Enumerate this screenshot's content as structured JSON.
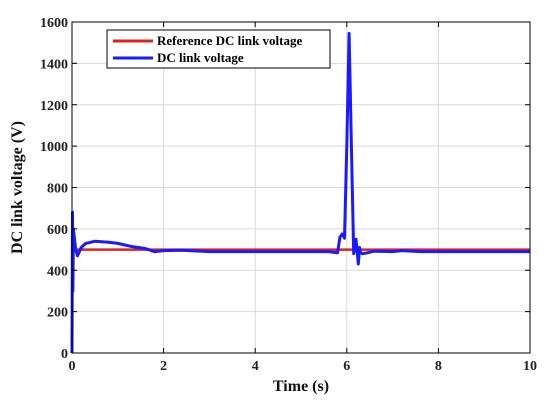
{
  "chart_data": {
    "type": "line",
    "title": "",
    "xlabel": "Time (s)",
    "ylabel": "DC link voltage (V)",
    "xlim": [
      0,
      10
    ],
    "ylim": [
      0,
      1600
    ],
    "xticks": [
      0,
      2,
      4,
      6,
      8,
      10
    ],
    "yticks": [
      0,
      200,
      400,
      600,
      800,
      1000,
      1200,
      1400,
      1600
    ],
    "xtick_labels": [
      "0",
      "2",
      "4",
      "6",
      "8",
      "10"
    ],
    "ytick_labels": [
      "0",
      "200",
      "400",
      "600",
      "800",
      "1000",
      "1200",
      "1400",
      "1600"
    ],
    "grid": true,
    "legend_position": "top-left",
    "series": [
      {
        "name": "Reference DC link voltage",
        "color": "#e02020",
        "x": [
          0,
          10
        ],
        "y": [
          500,
          500
        ]
      },
      {
        "name": "DC link voltage",
        "color": "#1a1aff",
        "x": [
          0,
          0.01,
          0.02,
          0.03,
          0.05,
          0.08,
          0.12,
          0.2,
          0.3,
          0.5,
          0.8,
          1.0,
          1.3,
          1.6,
          1.8,
          2.0,
          2.4,
          3.0,
          4.0,
          5.0,
          5.6,
          5.8,
          5.85,
          5.9,
          5.95,
          6.0,
          6.05,
          6.1,
          6.15,
          6.2,
          6.25,
          6.28,
          6.3,
          6.35,
          6.4,
          6.6,
          7.0,
          7.2,
          7.6,
          8.0,
          9.0,
          10.0
        ],
        "y": [
          0,
          680,
          300,
          600,
          560,
          500,
          470,
          510,
          530,
          540,
          535,
          530,
          515,
          505,
          490,
          495,
          497,
          490,
          490,
          490,
          490,
          485,
          560,
          575,
          555,
          1000,
          1545,
          1000,
          480,
          550,
          430,
          510,
          485,
          480,
          482,
          492,
          490,
          495,
          490,
          490,
          490,
          490
        ]
      }
    ]
  }
}
